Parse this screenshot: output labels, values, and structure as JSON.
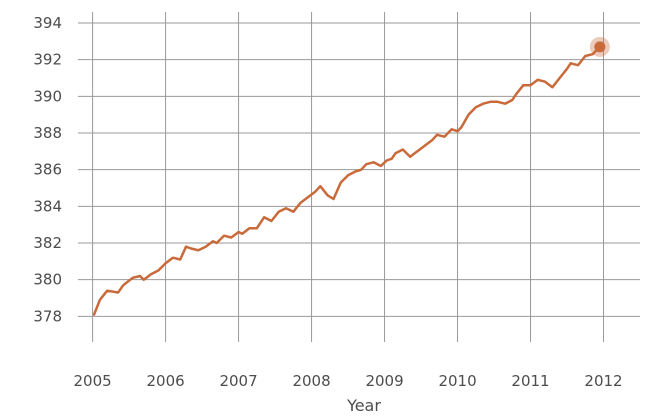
{
  "chart_data": {
    "type": "line",
    "xlabel": "Year",
    "ylabel": "",
    "title": "",
    "grid": true,
    "xlim": [
      2004.8,
      2012.5
    ],
    "ylim": [
      376.6,
      394.6
    ],
    "x_ticks": [
      2005,
      2006,
      2007,
      2008,
      2009,
      2010,
      2011,
      2012
    ],
    "y_ticks": [
      378,
      380,
      382,
      384,
      386,
      388,
      390,
      392,
      394
    ],
    "x_tick_labels": [
      "2005",
      "2006",
      "2007",
      "2008",
      "2009",
      "2010",
      "2011",
      "2012"
    ],
    "y_tick_labels": [
      "378",
      "380",
      "382",
      "384",
      "386",
      "388",
      "390",
      "392",
      "394"
    ],
    "series": [
      {
        "color": "#c96a3a",
        "x": [
          2005.02,
          2005.1,
          2005.2,
          2005.35,
          2005.42,
          2005.55,
          2005.65,
          2005.7,
          2005.8,
          2005.9,
          2006.0,
          2006.1,
          2006.2,
          2006.28,
          2006.35,
          2006.45,
          2006.55,
          2006.65,
          2006.7,
          2006.8,
          2006.9,
          2007.0,
          2007.05,
          2007.15,
          2007.25,
          2007.35,
          2007.45,
          2007.55,
          2007.65,
          2007.75,
          2007.85,
          2007.95,
          2008.05,
          2008.12,
          2008.22,
          2008.3,
          2008.4,
          2008.5,
          2008.6,
          2008.68,
          2008.75,
          2008.85,
          2008.95,
          2009.03,
          2009.1,
          2009.15,
          2009.25,
          2009.35,
          2009.45,
          2009.55,
          2009.65,
          2009.72,
          2009.82,
          2009.92,
          2010.0,
          2010.05,
          2010.15,
          2010.25,
          2010.35,
          2010.45,
          2010.55,
          2010.65,
          2010.75,
          2010.8,
          2010.9,
          2011.0,
          2011.1,
          2011.2,
          2011.3,
          2011.4,
          2011.5,
          2011.55,
          2011.65,
          2011.75,
          2011.85,
          2011.95
        ],
        "y": [
          378.1,
          378.9,
          379.4,
          379.3,
          379.7,
          380.1,
          380.2,
          380.0,
          380.3,
          380.5,
          380.9,
          381.2,
          381.1,
          381.8,
          381.7,
          381.6,
          381.8,
          382.1,
          382.0,
          382.4,
          382.3,
          382.6,
          382.5,
          382.8,
          382.8,
          383.4,
          383.2,
          383.7,
          383.9,
          383.7,
          384.2,
          384.5,
          384.8,
          385.1,
          384.6,
          384.4,
          385.3,
          385.7,
          385.9,
          386.0,
          386.3,
          386.4,
          386.2,
          386.5,
          386.6,
          386.9,
          387.1,
          386.7,
          387.0,
          387.3,
          387.6,
          387.9,
          387.8,
          388.2,
          388.1,
          388.3,
          389.0,
          389.4,
          389.6,
          389.7,
          389.7,
          389.6,
          389.8,
          390.1,
          390.6,
          390.6,
          390.9,
          390.8,
          390.5,
          391.0,
          391.5,
          391.8,
          391.7,
          392.2,
          392.3,
          392.7
        ]
      }
    ],
    "highlight_point": {
      "x": 2011.95,
      "y": 392.7
    }
  }
}
